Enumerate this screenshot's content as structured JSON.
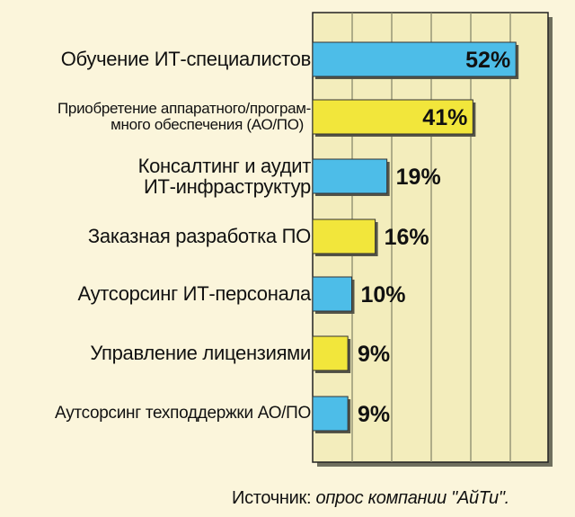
{
  "chart_data": {
    "type": "bar",
    "orientation": "horizontal",
    "categories": [
      "Обучение ИТ-специалистов",
      "Приобретение аппаратного/програм-\nмного обеспечения (АО/ПО)",
      "Консалтинг и аудит\nИТ-инфраструктур",
      "Заказная разработка ПО",
      "Аутсорсинг ИТ-персонала",
      "Управление лицензиями",
      "Аутсорсинг техподдержки АО/ПО"
    ],
    "values": [
      52,
      41,
      19,
      16,
      10,
      9,
      9
    ],
    "value_labels": [
      "52%",
      "41%",
      "19%",
      "16%",
      "10%",
      "9%",
      "9%"
    ],
    "xlim": [
      0,
      65
    ],
    "grid": true,
    "colors": {
      "blue": "#4dbde8",
      "yellow": "#f2e63b",
      "background": "#fbf5db",
      "plot_background": "#f3edbc",
      "grid": "#8a8a6c"
    },
    "bar_colors": [
      "blue",
      "yellow",
      "blue",
      "yellow",
      "blue",
      "yellow",
      "blue"
    ]
  },
  "source": {
    "prefix": "Источник: ",
    "text": "опрос компании \"АйТи\"."
  }
}
